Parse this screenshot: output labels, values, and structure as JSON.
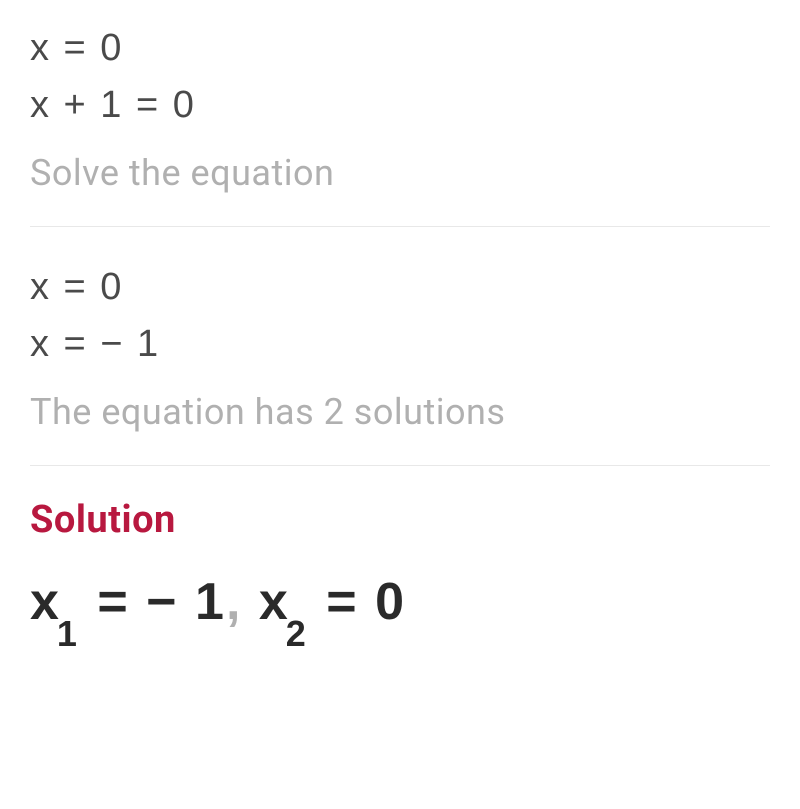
{
  "colors": {
    "text_primary": "#4a4a4a",
    "text_muted": "#b0b0b0",
    "solution_text": "#2a2a2a",
    "accent": "#b8183f",
    "divider": "#e8e8e8",
    "background": "#ffffff"
  },
  "typography": {
    "equation_fontsize": 38,
    "caption_fontsize": 36,
    "heading_fontsize": 38,
    "final_fontsize": 52,
    "subscript_fontsize": 36
  },
  "step1": {
    "line1": "x = 0",
    "line2": "x + 1 = 0",
    "caption": "Solve the equation"
  },
  "step2": {
    "line1": "x = 0",
    "line2": "x = − 1",
    "caption": "The equation has 2 solutions"
  },
  "solution": {
    "heading": "Solution",
    "var1": "x",
    "sub1": "1",
    "val1": " = − 1",
    "sep": ", ",
    "var2": "x",
    "sub2": "2",
    "val2": " = 0"
  }
}
